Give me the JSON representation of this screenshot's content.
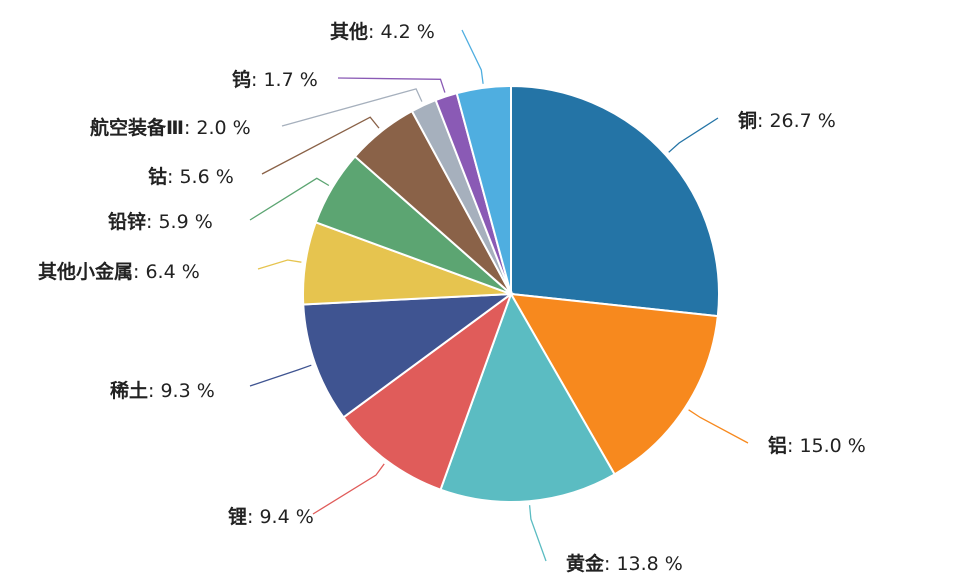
{
  "chart_data": {
    "type": "pie",
    "title": "",
    "categories": [
      "铜",
      "铝",
      "黄金",
      "锂",
      "稀土",
      "其他小金属",
      "铅锌",
      "钴",
      "航空装备Ⅲ",
      "钨",
      "其他"
    ],
    "values": [
      26.7,
      15.0,
      13.8,
      9.4,
      9.3,
      6.4,
      5.9,
      5.6,
      2.0,
      1.7,
      4.2
    ],
    "value_labels": [
      "26.7 %",
      "15.0 %",
      "13.8 %",
      "9.4 %",
      "9.3 %",
      "6.4 %",
      "5.9 %",
      "5.6 %",
      "2.0 %",
      "1.7 %",
      "4.2 %"
    ],
    "colors": [
      "#2474a6",
      "#f7891e",
      "#5bbcc2",
      "#e05c5a",
      "#3f5491",
      "#e6c44f",
      "#5ca572",
      "#8a6248",
      "#a6b0bd",
      "#8a5ab5",
      "#4faee0"
    ],
    "start_angle_deg": 0,
    "direction": "clockwise",
    "legend": "none",
    "labels_outside": true
  }
}
